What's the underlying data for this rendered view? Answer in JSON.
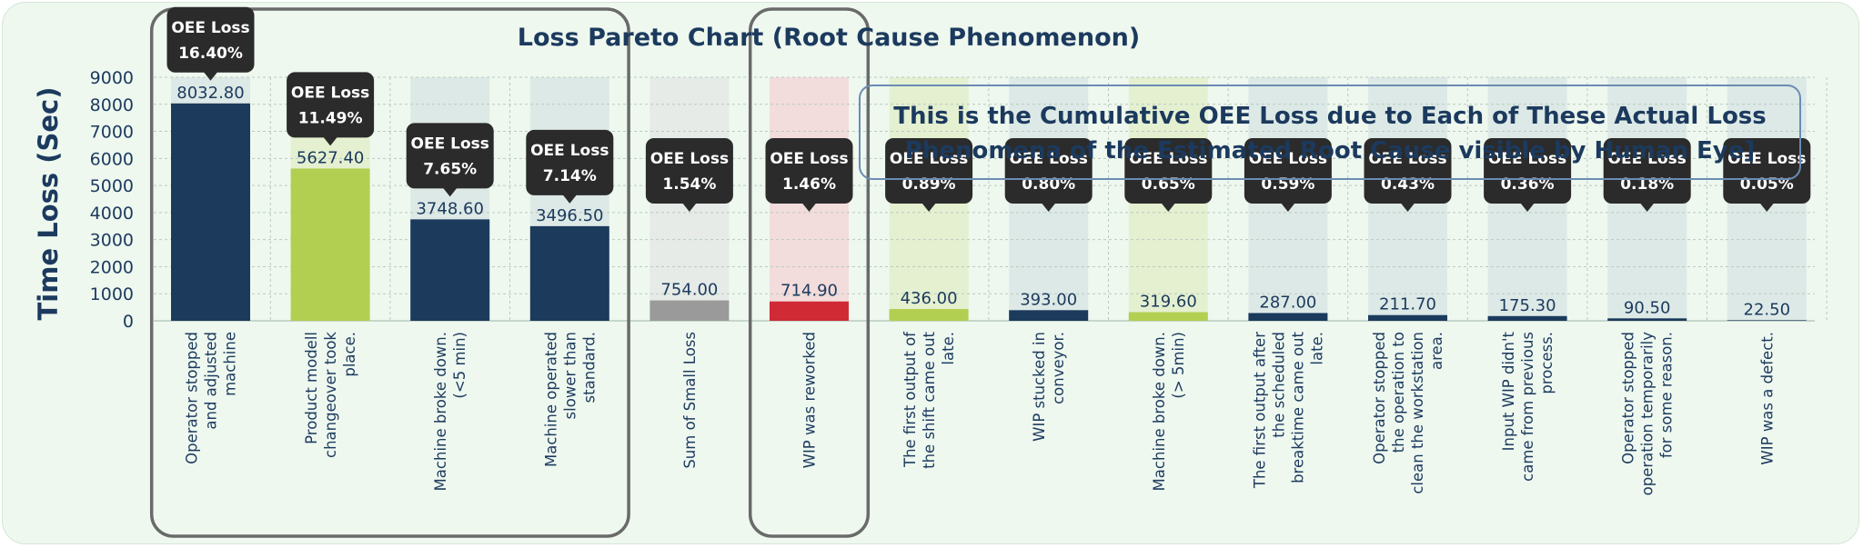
{
  "chart_data": {
    "type": "bar",
    "title": "Loss Pareto Chart (Root Cause Phenomenon)",
    "ylabel": "Time Loss (Sec)",
    "xlabel": "",
    "ylim": [
      0,
      9000
    ],
    "yticks": [
      0,
      1000,
      2000,
      3000,
      4000,
      5000,
      6000,
      7000,
      8000,
      9000
    ],
    "grid": true,
    "categories": [
      "Operator stopped and adjusted machine",
      "Product modell changeover took place.",
      "Machine broke down. (<5 min)",
      "Machine operated slower than standard.",
      "Sum of Small Loss",
      "WIP was reworked",
      "The first output of the shift came out late.",
      "WIP stucked in conveyor.",
      "Machine broke down. (> 5min)",
      "The first output after the scheduled breaktime came out late.",
      "Operator stopped the operation to clean the workstation area.",
      "Input WIP didn't came from previous process.",
      "Operator stopped operation temporarily for some reason.",
      "WIP was a defect."
    ],
    "category_lines": [
      [
        "Operator stopped",
        "and adjusted",
        "machine"
      ],
      [
        "Product modell",
        "changeover took",
        "place."
      ],
      [
        "Machine broke down.",
        "(<5 min)"
      ],
      [
        "Machine operated",
        "slower than",
        "standard."
      ],
      [
        "Sum of Small Loss"
      ],
      [
        "WIP was reworked"
      ],
      [
        "The first output of",
        "the shift came out",
        "late."
      ],
      [
        "WIP stucked in",
        "conveyor."
      ],
      [
        "Machine broke down.",
        "(> 5min)"
      ],
      [
        "The first output after",
        "the scheduled",
        "breaktime came out",
        "late."
      ],
      [
        "Operator stopped",
        "the operation to",
        "clean the workstation",
        "area."
      ],
      [
        "Input WIP didn't",
        "came from previous",
        "process."
      ],
      [
        "Operator stopped",
        "operation temporarily",
        "for some reason."
      ],
      [
        "WIP was a defect."
      ]
    ],
    "values": [
      8032.8,
      5627.4,
      3748.6,
      3496.5,
      754.0,
      714.9,
      436.0,
      393.0,
      319.6,
      287.0,
      211.7,
      175.3,
      90.5,
      22.5
    ],
    "value_labels": [
      "8032.80",
      "5627.40",
      "3748.60",
      "3496.50",
      "754.00",
      "714.90",
      "436.00",
      "393.00",
      "319.60",
      "287.00",
      "211.70",
      "175.30",
      "90.50",
      "22.50"
    ],
    "oee_loss_label": "OEE Loss",
    "oee_loss_pct": [
      "16.40%",
      "11.49%",
      "7.65%",
      "7.14%",
      "1.54%",
      "1.46%",
      "0.89%",
      "0.80%",
      "0.65%",
      "0.59%",
      "0.43%",
      "0.36%",
      "0.18%",
      "0.05%"
    ],
    "bar_colors": [
      "#1b3a5c",
      "#b3cf52",
      "#1b3a5c",
      "#1b3a5c",
      "#9a9a9a",
      "#d02a35",
      "#b3cf52",
      "#1b3a5c",
      "#b3cf52",
      "#1b3a5c",
      "#1b3a5c",
      "#1b3a5c",
      "#1b3a5c",
      "#1b3a5c"
    ],
    "background_colors": [
      "#dde9e6",
      "#e4f0d0",
      "#dde9e6",
      "#dde9e6",
      "#e6ebe7",
      "#f3dcdc",
      "#e4f0d0",
      "#dde9e6",
      "#e4f0d0",
      "#dde9e6",
      "#dde9e6",
      "#dde9e6",
      "#dde9e6",
      "#dde9e6"
    ],
    "annotation": "This is the Cumulative OEE Loss due to Each of These Actual Loss Phenomena of the Estimated Root Cause visible by Human Eye]",
    "annotation_lines": [
      "This is the Cumulative OEE Loss due to Each of These Actual Loss",
      "Phenomena of the Estimated Root Cause visible by Human Eye]"
    ],
    "highlight_groups": [
      [
        0,
        3
      ],
      [
        5,
        5
      ]
    ]
  },
  "colors": {
    "card_bg": "#eef8ef",
    "text": "#1c3a5e",
    "bubble": "#2b2b2b",
    "frame": "#6a6a6a",
    "note_border": "#6b8cb3"
  }
}
